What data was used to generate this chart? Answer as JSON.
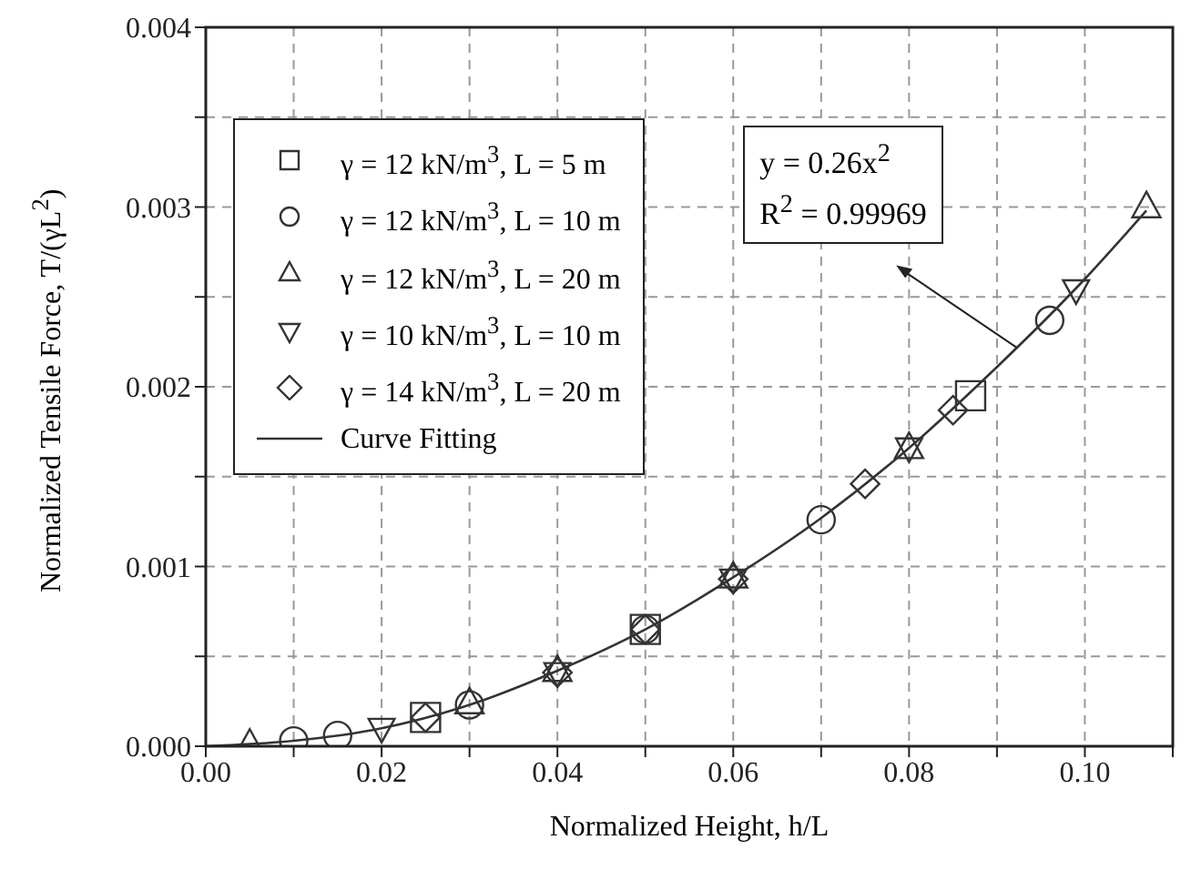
{
  "chart_data": {
    "type": "scatter",
    "xlabel": "Normalized Height, h/L",
    "ylabel": "Normalized Tensile Force, T/(γL$^{2}$)",
    "xlim": [
      0,
      0.11
    ],
    "ylim": [
      0,
      0.004
    ],
    "xticks": [
      {
        "value": 0,
        "label": "0.00"
      },
      {
        "value": 0.01,
        "label": null
      },
      0.02,
      {
        "value": 0.03,
        "label": null
      },
      0.04,
      {
        "value": 0.05,
        "label": null
      },
      0.06,
      {
        "value": 0.07,
        "label": null
      },
      0.08,
      {
        "value": 0.09,
        "label": null
      },
      {
        "value": 0.1,
        "label": "0.10"
      },
      {
        "value": 0.11,
        "label": null
      }
    ],
    "yticks": [
      {
        "value": 0,
        "label": "0.000"
      },
      {
        "value": 0.0005,
        "label": null
      },
      0.001,
      {
        "value": 0.0015,
        "label": null
      },
      0.002,
      {
        "value": 0.0025,
        "label": null
      },
      0.003,
      {
        "value": 0.0035,
        "label": null
      },
      0.004
    ],
    "grid": true,
    "legend": "top left",
    "series": [
      {
        "name": "γ = 12 kN/m$^{3}$, L = 5 m",
        "color": "#333333",
        "marker": "square",
        "x": [
          0.025,
          0.05,
          0.087
        ],
        "values": [
          0.00016,
          0.00065,
          0.00195
        ]
      },
      {
        "name": "γ = 12 kN/m$^{3}$, L = 10 m",
        "color": "#333333",
        "marker": "circle",
        "x": [
          0.01,
          0.015,
          0.03,
          0.05,
          0.07,
          0.096
        ],
        "values": [
          3e-05,
          6e-05,
          0.00023,
          0.00065,
          0.00126,
          0.00237
        ]
      },
      {
        "name": "γ = 12 kN/m$^{3}$, L = 20 m",
        "color": "#333333",
        "marker": "triangle",
        "x": [
          0.005,
          0.03,
          0.04,
          0.06,
          0.08,
          0.107
        ],
        "values": [
          1e-05,
          0.00024,
          0.00042,
          0.00094,
          0.00166,
          0.003
        ]
      },
      {
        "name": "γ = 10 kN/m$^{3}$, L = 10 m",
        "color": "#333333",
        "marker": "triangle-down",
        "x": [
          0.02,
          0.04,
          0.06,
          0.08,
          0.099
        ],
        "values": [
          0.0001,
          0.00041,
          0.00093,
          0.00166,
          0.00254
        ]
      },
      {
        "name": "γ = 14 kN/m$^{3}$, L = 20 m",
        "color": "#333333",
        "marker": "diamond",
        "x": [
          0.025,
          0.04,
          0.05,
          0.06,
          0.075,
          0.085
        ],
        "values": [
          0.00016,
          0.00041,
          0.00065,
          0.00093,
          0.00146,
          0.00187
        ]
      },
      {
        "name": "Curve Fitting",
        "type": "line",
        "color": "#333333",
        "line_style": "solid",
        "x": [
          0,
          0.01,
          0.02,
          0.03,
          0.04,
          0.05,
          0.06,
          0.07,
          0.08,
          0.09,
          0.1,
          0.107
        ],
        "values": [
          0,
          3e-05,
          0.0001,
          0.00023,
          0.00042,
          0.00065,
          0.00094,
          0.00127,
          0.00166,
          0.00211,
          0.0026,
          0.00298
        ]
      }
    ],
    "annotations": [
      "y = 0.26x$^{2}$",
      {
        "text": "R$^{2}$ = 0.99969",
        "x": 0.0922,
        "y": 0.00222
      }
    ]
  }
}
